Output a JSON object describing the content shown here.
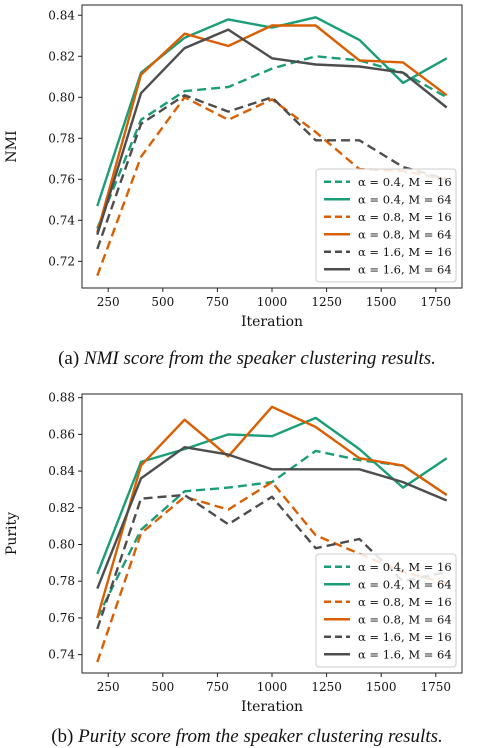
{
  "chart_data": [
    {
      "type": "line",
      "ylabel": "NMI",
      "xlabel": "Iteration",
      "xlim": [
        130,
        1870
      ],
      "ylim": [
        0.707,
        0.845
      ],
      "xticks": [
        250,
        500,
        750,
        1000,
        1250,
        1500,
        1750
      ],
      "yticks": [
        0.72,
        0.74,
        0.76,
        0.78,
        0.8,
        0.82,
        0.84
      ],
      "ytick_labels": [
        "0.72",
        "0.74",
        "0.76",
        "0.78",
        "0.80",
        "0.82",
        "0.84"
      ],
      "legend_position": "bottom-right",
      "x": [
        200,
        400,
        600,
        800,
        1000,
        1200,
        1400,
        1600,
        1800
      ],
      "series": [
        {
          "name": "α = 0.4, M = 16",
          "color": "#1a9e77",
          "style": "dashed",
          "values": [
            0.736,
            0.789,
            0.803,
            0.805,
            0.814,
            0.82,
            0.818,
            0.812,
            0.8
          ]
        },
        {
          "name": "α = 0.4, M = 64",
          "color": "#1a9e77",
          "style": "solid",
          "values": [
            0.747,
            0.812,
            0.829,
            0.838,
            0.834,
            0.839,
            0.828,
            0.807,
            0.819
          ]
        },
        {
          "name": "α = 0.8, M = 16",
          "color": "#d95f02",
          "style": "dashed",
          "values": [
            0.713,
            0.771,
            0.8,
            0.789,
            0.799,
            0.783,
            0.765,
            0.764,
            0.76
          ]
        },
        {
          "name": "α = 0.8, M = 64",
          "color": "#d95f02",
          "style": "solid",
          "values": [
            0.734,
            0.811,
            0.831,
            0.825,
            0.835,
            0.835,
            0.818,
            0.817,
            0.801
          ]
        },
        {
          "name": "α = 1.6, M = 16",
          "color": "#4d4d4d",
          "style": "dashed",
          "values": [
            0.726,
            0.787,
            0.801,
            0.793,
            0.8,
            0.779,
            0.779,
            0.766,
            0.76
          ]
        },
        {
          "name": "α = 1.6, M = 64",
          "color": "#4d4d4d",
          "style": "solid",
          "values": [
            0.733,
            0.802,
            0.824,
            0.833,
            0.819,
            0.816,
            0.815,
            0.812,
            0.795
          ]
        }
      ]
    },
    {
      "type": "line",
      "ylabel": "Purity",
      "xlabel": "Iteration",
      "xlim": [
        130,
        1870
      ],
      "ylim": [
        0.73,
        0.882
      ],
      "xticks": [
        250,
        500,
        750,
        1000,
        1250,
        1500,
        1750
      ],
      "yticks": [
        0.74,
        0.76,
        0.78,
        0.8,
        0.82,
        0.84,
        0.86,
        0.88
      ],
      "ytick_labels": [
        "0.74",
        "0.76",
        "0.78",
        "0.80",
        "0.82",
        "0.84",
        "0.86",
        "0.88"
      ],
      "legend_position": "bottom-right",
      "x": [
        200,
        400,
        600,
        800,
        1000,
        1200,
        1400,
        1600,
        1800
      ],
      "series": [
        {
          "name": "α = 0.4, M = 16",
          "color": "#1a9e77",
          "style": "dashed",
          "values": [
            0.76,
            0.808,
            0.829,
            0.831,
            0.834,
            0.851,
            0.846,
            0.843,
            0.827
          ]
        },
        {
          "name": "α = 0.4, M = 64",
          "color": "#1a9e77",
          "style": "solid",
          "values": [
            0.784,
            0.845,
            0.852,
            0.86,
            0.859,
            0.869,
            0.852,
            0.831,
            0.847
          ]
        },
        {
          "name": "α = 0.8, M = 16",
          "color": "#d95f02",
          "style": "dashed",
          "values": [
            0.736,
            0.806,
            0.826,
            0.819,
            0.834,
            0.805,
            0.795,
            0.785,
            0.779
          ]
        },
        {
          "name": "α = 0.8, M = 64",
          "color": "#d95f02",
          "style": "solid",
          "values": [
            0.76,
            0.843,
            0.868,
            0.848,
            0.875,
            0.864,
            0.847,
            0.843,
            0.827
          ]
        },
        {
          "name": "α = 1.6, M = 16",
          "color": "#4d4d4d",
          "style": "dashed",
          "values": [
            0.754,
            0.825,
            0.827,
            0.811,
            0.826,
            0.798,
            0.803,
            0.78,
            0.785
          ]
        },
        {
          "name": "α = 1.6, M = 64",
          "color": "#4d4d4d",
          "style": "solid",
          "values": [
            0.776,
            0.836,
            0.853,
            0.849,
            0.841,
            0.841,
            0.841,
            0.834,
            0.824
          ]
        }
      ]
    }
  ],
  "captions": {
    "a_label": "(a) ",
    "a_text": "NMI score from the speaker clustering results.",
    "b_label": "(b) ",
    "b_text": "Purity score from the speaker clustering results."
  }
}
